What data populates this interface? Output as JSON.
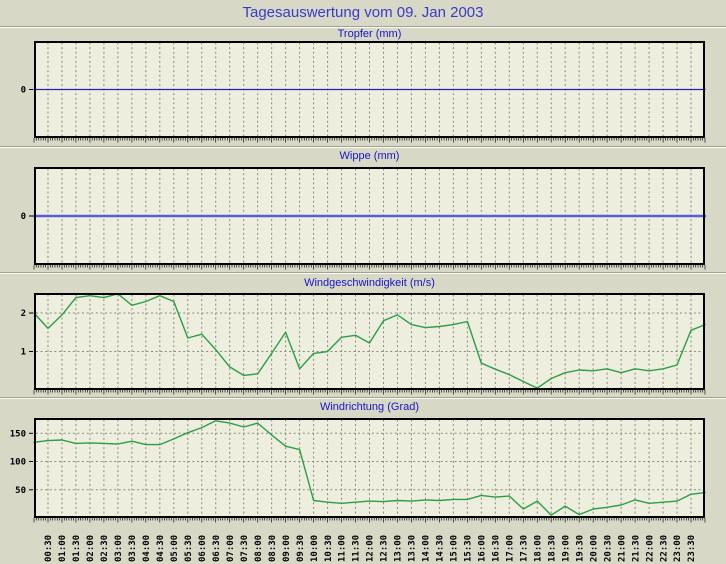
{
  "page": {
    "title": "Tagesauswertung vom 09. Jan 2003"
  },
  "colors": {
    "page_bg": "#d8d8c7",
    "plot_bg": "#eeeedf",
    "grid": "#8a8a7e",
    "frame": "#000000",
    "title_text": "#3a3ac8",
    "panel_title_text": "#1515c8",
    "tick_text": "#000000",
    "tropfer_line": "#2323b4",
    "wippe_line": "#5c5cd8",
    "wind_line": "#2b9e45"
  },
  "chart_data": {
    "type": "line",
    "layout": "4 stacked panels, shared x axis",
    "sample_interval_minutes": 30,
    "x_labels": [
      "00:30",
      "01:00",
      "01:30",
      "02:00",
      "02:30",
      "03:00",
      "03:30",
      "04:00",
      "04:30",
      "05:00",
      "05:30",
      "06:00",
      "06:30",
      "07:00",
      "07:30",
      "08:00",
      "08:30",
      "09:00",
      "09:30",
      "10:00",
      "10:30",
      "11:00",
      "11:30",
      "12:00",
      "12:30",
      "13:00",
      "13:30",
      "14:00",
      "14:30",
      "15:00",
      "15:30",
      "16:00",
      "16:30",
      "17:00",
      "17:30",
      "18:00",
      "18:30",
      "19:00",
      "19:30",
      "20:00",
      "20:30",
      "21:00",
      "21:30",
      "22:00",
      "22:30",
      "23:00",
      "23:30"
    ],
    "panels": [
      {
        "id": "tropfer",
        "title": "Tropfer (mm)",
        "unit": "mm",
        "yticks": [
          0
        ],
        "ylim": [
          -1,
          1
        ],
        "constant_value": 0,
        "line_color": "#2323b4"
      },
      {
        "id": "wippe",
        "title": "Wippe (mm)",
        "unit": "mm",
        "yticks": [
          0
        ],
        "ylim": [
          -1,
          1
        ],
        "constant_value": 0,
        "line_color": "#5c5cd8"
      },
      {
        "id": "windgeschwindigkeit",
        "title": "Windgeschwindigkeit (m/s)",
        "unit": "m/s",
        "yticks": [
          1,
          2
        ],
        "ylim": [
          0,
          2.52
        ],
        "values": [
          2.0,
          1.6,
          1.95,
          2.4,
          2.45,
          2.4,
          2.5,
          2.2,
          2.3,
          2.45,
          2.3,
          1.35,
          1.45,
          1.05,
          0.6,
          0.38,
          0.42,
          0.95,
          1.5,
          0.55,
          0.95,
          1.0,
          1.37,
          1.42,
          1.22,
          1.8,
          1.95,
          1.7,
          1.62,
          1.65,
          1.7,
          1.78,
          0.7,
          0.54,
          0.4,
          0.22,
          0.05,
          0.3,
          0.45,
          0.52,
          0.5,
          0.55,
          0.45,
          0.55,
          0.5,
          0.55,
          0.65,
          1.55,
          1.7
        ],
        "line_color": "#2b9e45"
      },
      {
        "id": "windrichtung",
        "title": "Windrichtung (Grad)",
        "unit": "Grad",
        "yticks": [
          50,
          100,
          150
        ],
        "ylim": [
          0,
          177
        ],
        "values": [
          134,
          137,
          138,
          132,
          133,
          132,
          131,
          136,
          130,
          130,
          140,
          151,
          160,
          172,
          168,
          161,
          168,
          147,
          127,
          121,
          31,
          28,
          26,
          28,
          30,
          29,
          31,
          30,
          32,
          31,
          33,
          33,
          40,
          37,
          39,
          16,
          30,
          5,
          21,
          6,
          16,
          19,
          23,
          32,
          26,
          28,
          30,
          42,
          45
        ],
        "line_color": "#2b9e45"
      }
    ]
  }
}
